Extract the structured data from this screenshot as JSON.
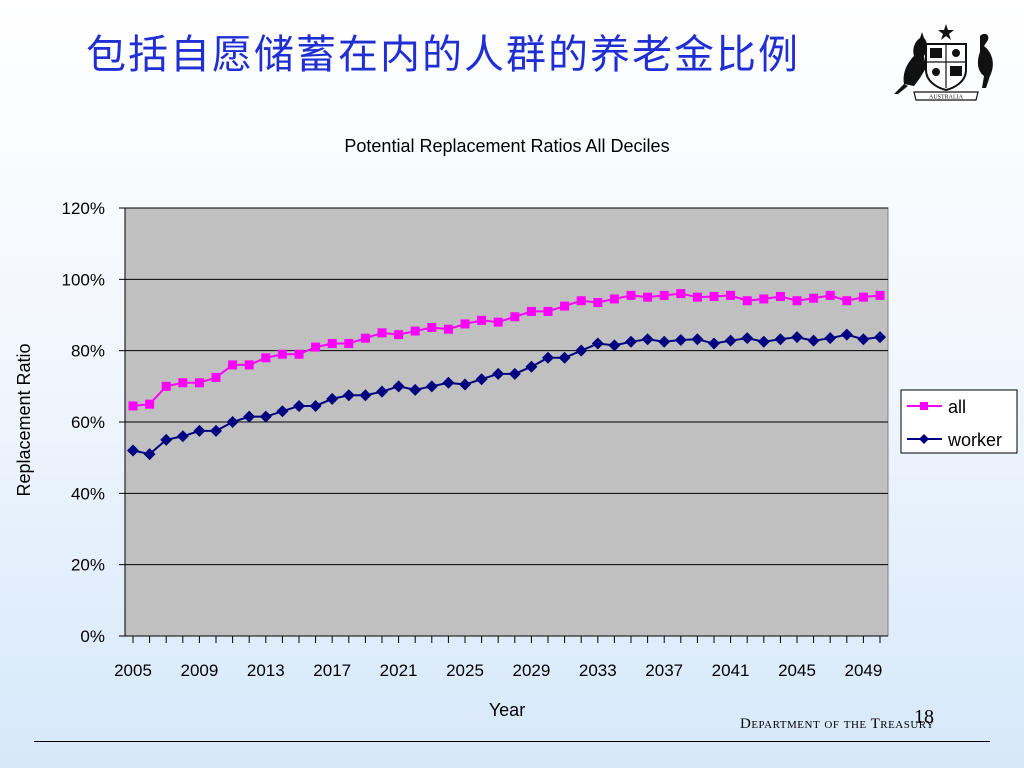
{
  "slide": {
    "title": "包括自愿储蓄在内的人群的养老金比例",
    "page_number": "18",
    "department": "Department of the Treasury",
    "crest_text": "AUSTRALIA"
  },
  "colors": {
    "title": "#1f2fd3",
    "plot_background": "#c0c0c0",
    "all": "#ff00ff",
    "worker": "#000080"
  },
  "chart_data": {
    "type": "line",
    "title": "Potential Replacement Ratios All Deciles",
    "xlabel": "Year",
    "ylabel": "Replacement Ratio",
    "x": [
      2005,
      2006,
      2007,
      2008,
      2009,
      2010,
      2011,
      2012,
      2013,
      2014,
      2015,
      2016,
      2017,
      2018,
      2019,
      2020,
      2021,
      2022,
      2023,
      2024,
      2025,
      2026,
      2027,
      2028,
      2029,
      2030,
      2031,
      2032,
      2033,
      2034,
      2035,
      2036,
      2037,
      2038,
      2039,
      2040,
      2041,
      2042,
      2043,
      2044,
      2045,
      2046,
      2047,
      2048,
      2049,
      2050
    ],
    "x_tick_labels": [
      "2005",
      "2009",
      "2013",
      "2017",
      "2021",
      "2025",
      "2029",
      "2033",
      "2037",
      "2041",
      "2045",
      "2049"
    ],
    "y_tick_labels": [
      "0%",
      "20%",
      "40%",
      "60%",
      "80%",
      "100%",
      "120%"
    ],
    "ylim": [
      0,
      1.2
    ],
    "grid": true,
    "legend_position": "right",
    "series": [
      {
        "name": "all",
        "marker": "square",
        "values": [
          0.645,
          0.65,
          0.7,
          0.71,
          0.71,
          0.725,
          0.76,
          0.76,
          0.78,
          0.79,
          0.79,
          0.81,
          0.82,
          0.82,
          0.835,
          0.85,
          0.845,
          0.855,
          0.865,
          0.86,
          0.875,
          0.885,
          0.88,
          0.895,
          0.91,
          0.91,
          0.925,
          0.94,
          0.935,
          0.945,
          0.955,
          0.95,
          0.955,
          0.96,
          0.95,
          0.952,
          0.955,
          0.94,
          0.945,
          0.952,
          0.94,
          0.947,
          0.955,
          0.94,
          0.95,
          0.955
        ]
      },
      {
        "name": "worker",
        "marker": "diamond",
        "values": [
          0.52,
          0.51,
          0.55,
          0.56,
          0.575,
          0.575,
          0.6,
          0.615,
          0.615,
          0.63,
          0.645,
          0.645,
          0.665,
          0.675,
          0.675,
          0.685,
          0.7,
          0.69,
          0.7,
          0.71,
          0.705,
          0.72,
          0.735,
          0.735,
          0.755,
          0.78,
          0.78,
          0.8,
          0.82,
          0.815,
          0.825,
          0.832,
          0.825,
          0.83,
          0.832,
          0.82,
          0.828,
          0.835,
          0.825,
          0.832,
          0.838,
          0.828,
          0.835,
          0.845,
          0.832,
          0.838
        ]
      }
    ]
  }
}
